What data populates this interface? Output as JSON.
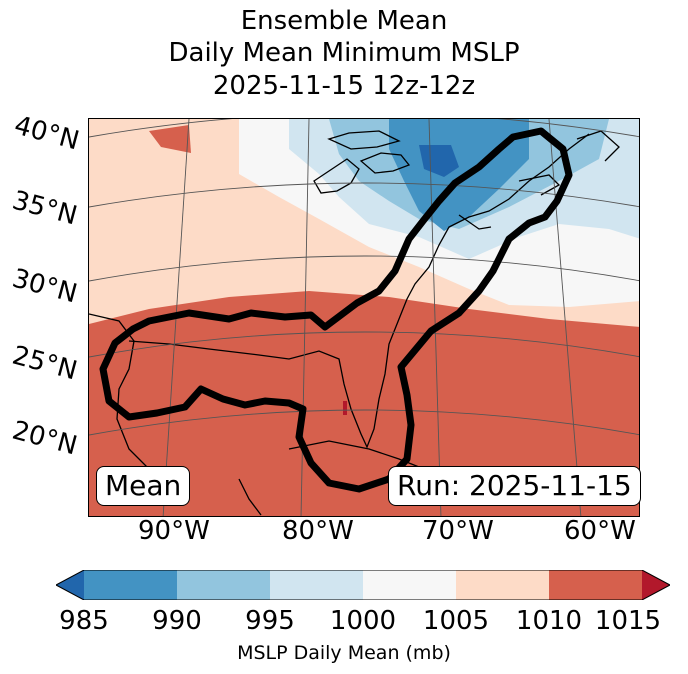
{
  "title": {
    "line1": "Ensemble Mean",
    "line2": "Daily Mean Minimum MSLP",
    "line3": "2025-11-15 12z-12z"
  },
  "map": {
    "lat_labels": [
      "40°N",
      "35°N",
      "30°N",
      "25°N",
      "20°N"
    ],
    "lon_labels": [
      "90°W",
      "80°W",
      "70°W",
      "60°W"
    ],
    "mean_label": "Mean",
    "run_label": "Run: 2025-11-15"
  },
  "colorbar": {
    "label": "MSLP Daily Mean (mb)",
    "ticks": [
      "985",
      "990",
      "995",
      "1000",
      "1005",
      "1010",
      "1015"
    ],
    "colors": {
      "below": "#2166ac",
      "b985_990": "#4393c3",
      "b990_995": "#92c5de",
      "b995_1000": "#d1e5f0",
      "b1000_1005": "#f7f7f7",
      "b1005_1010": "#fddbc7",
      "b1010_1015": "#d6604d",
      "above": "#b2182b"
    }
  }
}
